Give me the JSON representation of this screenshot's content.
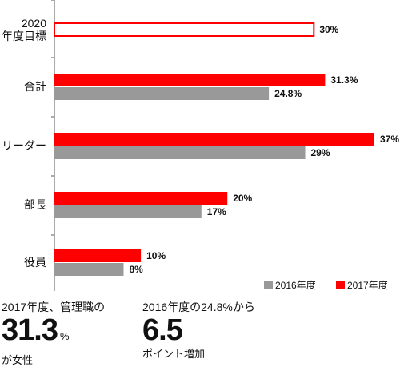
{
  "chart_data": {
    "type": "bar",
    "orientation": "horizontal",
    "categories": [
      "2020\n年度目標",
      "合計",
      "リーダー",
      "部長",
      "役員"
    ],
    "series": [
      {
        "name": "2017年度",
        "values": [
          30,
          31.3,
          37,
          20,
          10
        ],
        "value_labels": [
          "30%",
          "31.3%",
          "37%",
          "20%",
          "10%"
        ],
        "color": "#ff0000",
        "outline_only_for_first": true
      },
      {
        "name": "2016年度",
        "values": [
          null,
          24.8,
          29,
          17,
          8
        ],
        "value_labels": [
          "",
          "24.8%",
          "29%",
          "17%",
          "8%"
        ],
        "color": "#999999"
      }
    ],
    "xlim": [
      0,
      37
    ],
    "grid": false,
    "legend_position": "bottom-right"
  },
  "legend": {
    "items": [
      {
        "label": "2016年度",
        "color": "#999999"
      },
      {
        "label": "2017年度",
        "color": "#ff0000"
      }
    ]
  },
  "stats": {
    "left": {
      "top": "2017年度、管理職の",
      "big": "31.3",
      "unit": "%",
      "bottom": "が女性"
    },
    "right": {
      "top": "2016年度の24.8%から",
      "big": "6.5",
      "bottom": "ポイント増加"
    }
  }
}
